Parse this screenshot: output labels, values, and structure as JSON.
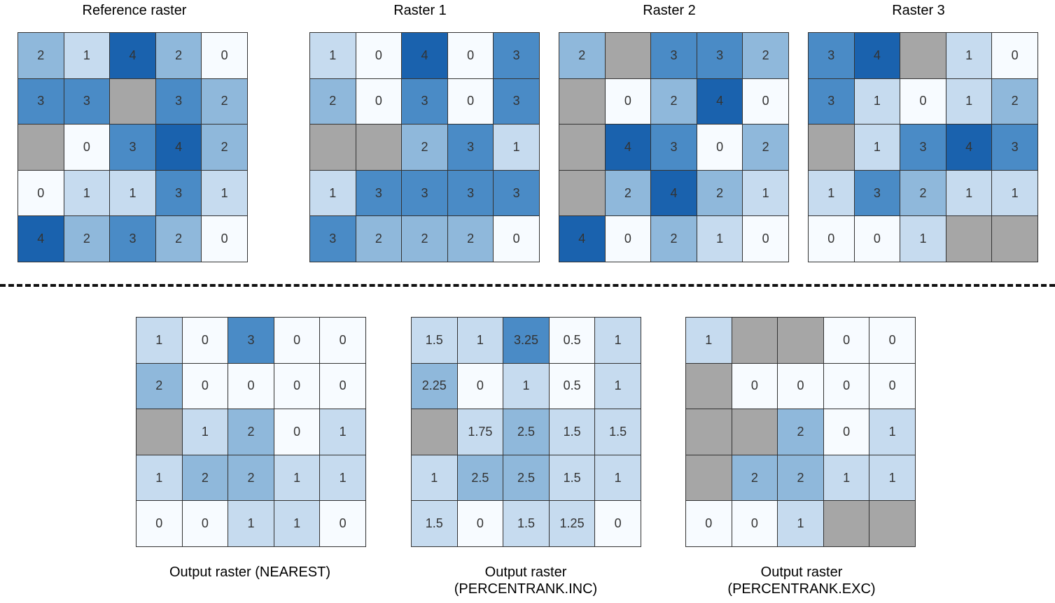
{
  "colors": {
    "nodata": "#a6a6a6",
    "scale": [
      "#f7fbff",
      "#c6dbef",
      "#8fb8db",
      "#4a8bc6",
      "#1a62ae"
    ]
  },
  "top_rasters": [
    {
      "title": "Reference raster",
      "cells": [
        [
          "2",
          "1",
          "4",
          "2",
          "0"
        ],
        [
          "3",
          "3",
          null,
          "3",
          "2"
        ],
        [
          null,
          "0",
          "3",
          "4",
          "2"
        ],
        [
          "0",
          "1",
          "1",
          "3",
          "1"
        ],
        [
          "4",
          "2",
          "3",
          "2",
          "0"
        ]
      ],
      "levels": [
        [
          2,
          1,
          4,
          2,
          0
        ],
        [
          3,
          3,
          null,
          3,
          2
        ],
        [
          null,
          0,
          3,
          4,
          2
        ],
        [
          0,
          1,
          1,
          3,
          1
        ],
        [
          4,
          2,
          3,
          2,
          0
        ]
      ]
    },
    {
      "title": "Raster 1",
      "cells": [
        [
          "1",
          "0",
          "4",
          "0",
          "3"
        ],
        [
          "2",
          "0",
          "3",
          "0",
          "3"
        ],
        [
          null,
          null,
          "2",
          "3",
          "1"
        ],
        [
          "1",
          "3",
          "3",
          "3",
          "3"
        ],
        [
          "3",
          "2",
          "2",
          "2",
          "0"
        ]
      ],
      "levels": [
        [
          1,
          0,
          4,
          0,
          3
        ],
        [
          2,
          0,
          3,
          0,
          3
        ],
        [
          null,
          null,
          2,
          3,
          1
        ],
        [
          1,
          3,
          3,
          3,
          3
        ],
        [
          3,
          2,
          2,
          2,
          0
        ]
      ]
    },
    {
      "title": "Raster 2",
      "cells": [
        [
          "2",
          null,
          "3",
          "3",
          "2"
        ],
        [
          null,
          "0",
          "2",
          "4",
          "0"
        ],
        [
          null,
          "4",
          "3",
          "0",
          "2"
        ],
        [
          null,
          "2",
          "4",
          "2",
          "1"
        ],
        [
          "4",
          "0",
          "2",
          "1",
          "0"
        ]
      ],
      "levels": [
        [
          2,
          null,
          3,
          3,
          2
        ],
        [
          null,
          0,
          2,
          4,
          0
        ],
        [
          null,
          4,
          3,
          0,
          2
        ],
        [
          null,
          2,
          4,
          2,
          1
        ],
        [
          4,
          0,
          2,
          1,
          0
        ]
      ]
    },
    {
      "title": "Raster 3",
      "cells": [
        [
          "3",
          "4",
          null,
          "1",
          "0"
        ],
        [
          "3",
          "1",
          "0",
          "1",
          "2"
        ],
        [
          null,
          "1",
          "3",
          "4",
          "3"
        ],
        [
          "1",
          "3",
          "2",
          "1",
          "1"
        ],
        [
          "0",
          "0",
          "1",
          null,
          null
        ]
      ],
      "levels": [
        [
          3,
          4,
          null,
          1,
          0
        ],
        [
          3,
          1,
          0,
          1,
          2
        ],
        [
          null,
          1,
          3,
          4,
          3
        ],
        [
          1,
          3,
          2,
          1,
          1
        ],
        [
          0,
          0,
          1,
          null,
          null
        ]
      ]
    }
  ],
  "bottom_rasters": [
    {
      "caption_lines": [
        "Output raster (NEAREST)"
      ],
      "cells": [
        [
          "1",
          "0",
          "3",
          "0",
          "0"
        ],
        [
          "2",
          "0",
          "0",
          "0",
          "0"
        ],
        [
          null,
          "1",
          "2",
          "0",
          "1"
        ],
        [
          "1",
          "2",
          "2",
          "1",
          "1"
        ],
        [
          "0",
          "0",
          "1",
          "1",
          "0"
        ]
      ],
      "levels": [
        [
          1,
          0,
          3,
          0,
          0
        ],
        [
          2,
          0,
          0,
          0,
          0
        ],
        [
          null,
          1,
          2,
          0,
          1
        ],
        [
          1,
          2,
          2,
          1,
          1
        ],
        [
          0,
          0,
          1,
          1,
          0
        ]
      ]
    },
    {
      "caption_lines": [
        "Output raster",
        "(PERCENTRANK.INC)"
      ],
      "cells": [
        [
          "1.5",
          "1",
          "3.25",
          "0.5",
          "1"
        ],
        [
          "2.25",
          "0",
          "1",
          "0.5",
          "1"
        ],
        [
          null,
          "1.75",
          "2.5",
          "1.5",
          "1.5"
        ],
        [
          "1",
          "2.5",
          "2.5",
          "1.5",
          "1"
        ],
        [
          "1.5",
          "0",
          "1.5",
          "1.25",
          "0"
        ]
      ],
      "levels": [
        [
          1.2,
          0.6,
          2.6,
          0.3,
          0.6
        ],
        [
          1.6,
          0,
          0.6,
          0.3,
          0.6
        ],
        [
          null,
          1.2,
          1.6,
          1.2,
          1.2
        ],
        [
          0.6,
          1.7,
          1.7,
          1.2,
          0.6
        ],
        [
          1.2,
          0,
          1.2,
          1.2,
          0
        ]
      ]
    },
    {
      "caption_lines": [
        "Output raster",
        "(PERCENTRANK.EXC)"
      ],
      "cells": [
        [
          "1",
          null,
          null,
          "0",
          "0"
        ],
        [
          null,
          "0",
          "0",
          "0",
          "0"
        ],
        [
          null,
          null,
          "2",
          "0",
          "1"
        ],
        [
          null,
          "2",
          "2",
          "1",
          "1"
        ],
        [
          "0",
          "0",
          "1",
          null,
          null
        ]
      ],
      "levels": [
        [
          1,
          null,
          null,
          0,
          0
        ],
        [
          null,
          0,
          0,
          0,
          0
        ],
        [
          null,
          null,
          2,
          0,
          1
        ],
        [
          null,
          2,
          2,
          1,
          1
        ],
        [
          0,
          0,
          1,
          null,
          null
        ]
      ]
    }
  ]
}
